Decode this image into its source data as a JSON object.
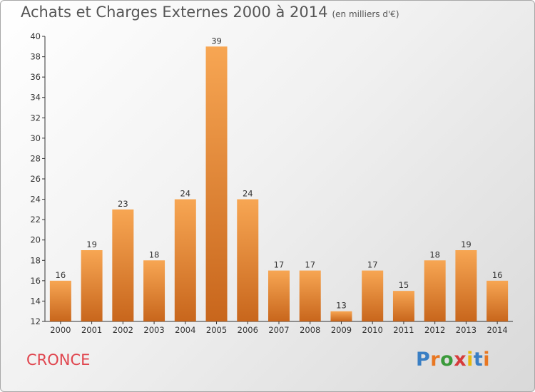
{
  "header": {
    "title": "Achats et Charges Externes 2000 à 2014",
    "subtitle": "(en milliers d'€)"
  },
  "footer": {
    "commune": "CRONCE",
    "logo_letters": [
      "P",
      "r",
      "o",
      "x",
      "i",
      "t",
      "i"
    ],
    "logo_colors": [
      "#3a7fc4",
      "#e87722",
      "#3a9a3a",
      "#d63b3b",
      "#e8b90c",
      "#3a7fc4",
      "#e87722"
    ]
  },
  "chart_data": {
    "type": "bar",
    "title": "Achats et Charges Externes 2000 à 2014",
    "subtitle": "(en milliers d'€)",
    "xlabel": "",
    "ylabel": "",
    "categories": [
      "2000",
      "2001",
      "2002",
      "2003",
      "2004",
      "2005",
      "2006",
      "2007",
      "2008",
      "2009",
      "2010",
      "2011",
      "2012",
      "2013",
      "2014"
    ],
    "values": [
      16,
      19,
      23,
      18,
      24,
      39,
      24,
      17,
      17,
      13,
      17,
      15,
      18,
      19,
      16
    ],
    "ylim": [
      12,
      40
    ],
    "yticks": [
      12,
      14,
      16,
      18,
      20,
      22,
      24,
      26,
      28,
      30,
      32,
      34,
      36,
      38,
      40
    ],
    "grid": false,
    "bar_color_light": "#f7a653",
    "bar_color_dark": "#c8661c"
  }
}
